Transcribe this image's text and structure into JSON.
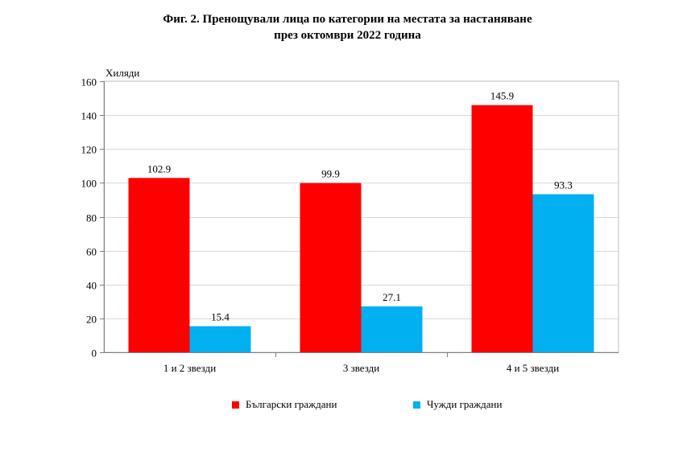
{
  "chart_data": {
    "type": "bar",
    "title_lines": [
      "Фиг. 2. Пренощували лица по категории на местата за настаняване",
      "през октомври 2022 година"
    ],
    "ylabel": "Хиляди",
    "xlabel": "",
    "ylim": [
      0,
      160
    ],
    "yticks": [
      0,
      20,
      40,
      60,
      80,
      100,
      120,
      140,
      160
    ],
    "ytick_labels": [
      "0",
      "20",
      "40",
      "60",
      "80",
      "100",
      "120",
      "140",
      "160"
    ],
    "grid": true,
    "legend_position": "bottom",
    "categories": [
      "1 и 2 звезди",
      "3 звезди",
      "4 и 5 звезди"
    ],
    "series": [
      {
        "name": "Български граждани",
        "color": "#FF0000",
        "values": [
          102.9,
          99.9,
          145.9
        ],
        "labels": [
          "102.9",
          "99.9",
          "145.9"
        ]
      },
      {
        "name": "Чужди граждани",
        "color": "#00B0F0",
        "values": [
          15.4,
          27.1,
          93.3
        ],
        "labels": [
          "15.4",
          "27.1",
          "93.3"
        ]
      }
    ]
  }
}
